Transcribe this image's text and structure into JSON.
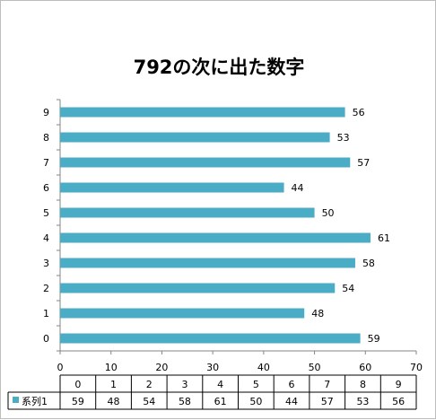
{
  "chart_data": {
    "type": "bar",
    "orientation": "horizontal",
    "title": "792の次に出た数字",
    "categories": [
      "0",
      "1",
      "2",
      "3",
      "4",
      "5",
      "6",
      "7",
      "8",
      "9"
    ],
    "series": [
      {
        "name": "系列1",
        "values": [
          59,
          48,
          54,
          58,
          61,
          50,
          44,
          57,
          53,
          56
        ]
      }
    ],
    "xlim": [
      0,
      70
    ],
    "x_ticks": [
      0,
      10,
      20,
      30,
      40,
      50,
      60,
      70
    ],
    "xlabel": "",
    "ylabel": "",
    "grid": false,
    "data_labels": true,
    "data_table": true,
    "bar_color": "#4bacc6"
  }
}
